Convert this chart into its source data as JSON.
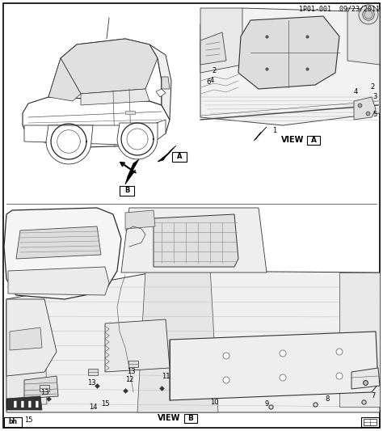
{
  "part_number": "1P01-001",
  "date": "09/23/2011",
  "background_color": "#ffffff",
  "border_color": "#000000",
  "text_color": "#000000",
  "figsize": [
    4.74,
    5.33
  ],
  "dpi": 100,
  "view_a_label": "VIEW",
  "view_b_label": "VIEW",
  "corner_label_bl": "bh",
  "gray_light": "#e8e8e8",
  "gray_mid": "#bbbbbb",
  "gray_dark": "#888888",
  "line_thin": 0.4,
  "line_med": 0.7,
  "line_thick": 1.0
}
